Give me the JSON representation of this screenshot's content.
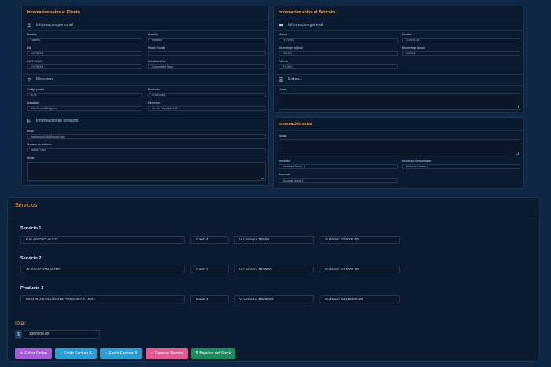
{
  "cliente": {
    "title": "Informacion sobre el Cliente",
    "personal": {
      "title": "Informacion personal",
      "nombre_label": "Nombre",
      "nombre": "Osberto",
      "apellido_label": "Apellido",
      "apellido": "Martinez",
      "dni_label": "DNI",
      "dni": "14775093",
      "razon_label": "Razon Social",
      "razon": "",
      "cuit_label": "CUIT / CUIL",
      "cuit": "14775093",
      "condicion_label": "Condicion IVA",
      "condicion": "Consumidor Final"
    },
    "direccion": {
      "title": "Direccion",
      "cp_label": "Codigo postal",
      "cp": "8134",
      "provincia_label": "Provincia",
      "provincia": "CORDOBA",
      "localidad_label": "Localidad",
      "localidad": "Villa General Belgrano",
      "direccion_label": "Direccion",
      "direccion": "Av. del Peg/milita 129"
    },
    "contacto": {
      "title": "Informacion de contacto",
      "email_label": "Email",
      "email": "osbertomtz1046@gmail.com",
      "tel_label": "Numero de telefono",
      "tel": "3516447369",
      "notas_label": "Notas"
    }
  },
  "vehiculo": {
    "title": "Informacion sobre el Vehiculo",
    "general": {
      "title": "Informacion general",
      "marca_label": "Marca",
      "marca": "TOYOTA",
      "modelo_label": "Modelo",
      "modelo": "COROLLA",
      "km_orig_label": "Kilometraje original",
      "km_orig": "205.350",
      "km_act_label": "Kilometraje actual",
      "km_act": "209524",
      "patente_label": "Patente",
      "patente": "PYZ840"
    },
    "extras": {
      "title": "Extras...",
      "notas_label": "Notas"
    }
  },
  "extra_info": {
    "title": "Informacion extra",
    "notas_label": "Notas",
    "vendedor_label": "Vendedor",
    "vendedor": "Vendedor Nuevo 1",
    "mecanico_label": "Mecanico Responsable",
    "mecanico": "Mecanico Nuevo 1",
    "sucursal_label": "Sucursal",
    "sucursal": "Sucursal Nueva 1"
  },
  "servicios": {
    "title": "Servicios",
    "items": [
      {
        "title": "Servicio 1",
        "name": "BALANCEO AUTO",
        "cant": "Cant: 4",
        "unit": "V. Unitario: $6500",
        "subtotal": "Subtotal: $26000.00"
      },
      {
        "title": "Servicio 2",
        "name": "ALINEACION AUTO",
        "cant": "Cant: 1",
        "unit": "V. Unitario: $18000",
        "subtotal": "Subtotal: $18000.00"
      },
      {
        "title": "Producto 1",
        "name": "MICHELIN 215/65R16 PRIMACY 4 102H",
        "cant": "Cant: 4",
        "unit": "V. Unitario: $329000",
        "subtotal": "Subtotal: $1316000.00"
      }
    ],
    "total_label": "Total:",
    "currency": "$",
    "total": "1360000.00"
  },
  "buttons": {
    "editar": "Editar Orden",
    "factura_a": "Emitir Factura A",
    "factura_b": "Emitir Factura B",
    "remito": "Generar Remito",
    "stock": "Bajadas del Stock"
  },
  "colors": {
    "accent": "#f2a65a",
    "editar": "#a35bd6",
    "factura": "#2a9ed1",
    "remito": "#e05b94",
    "stock": "#1c8a5e"
  }
}
